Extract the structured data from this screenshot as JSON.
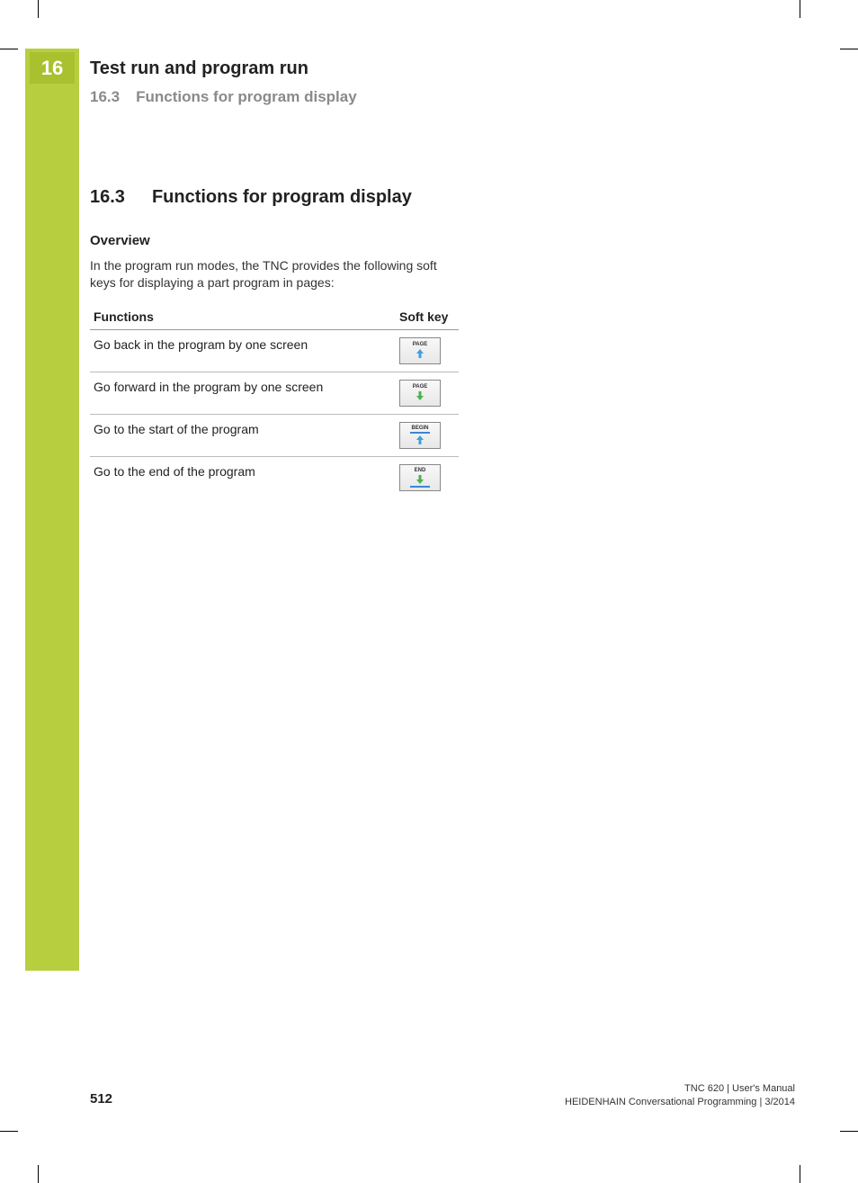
{
  "colors": {
    "sidebar": "#b7cf3f",
    "tab": "#aac12f",
    "tab_text": "#ffffff",
    "heading_grey": "#8a8a8a",
    "text": "#222222",
    "rule": "#999999",
    "softkey_border": "#888888",
    "softkey_bg_top": "#f8f8f8",
    "softkey_bg_bottom": "#e8e8e8",
    "arrow_blue": "#3ea0e0",
    "arrow_green": "#4fb04f",
    "bar_blue": "#3a88d6"
  },
  "chapter": {
    "number": "16",
    "title": "Test run and program run"
  },
  "running_section": {
    "number": "16.3",
    "title": "Functions for program display"
  },
  "section": {
    "number": "16.3",
    "title": "Functions for program display"
  },
  "overview": {
    "heading": "Overview",
    "intro": "In the program run modes, the TNC provides the following soft keys for displaying a part program in pages:"
  },
  "table": {
    "headers": {
      "functions": "Functions",
      "softkey": "Soft key"
    },
    "rows": [
      {
        "desc": "Go back in the program by one screen",
        "key": {
          "label": "PAGE",
          "icon": "arrow-up",
          "color": "#3ea0e0",
          "bar": false
        }
      },
      {
        "desc": "Go forward in the program by one screen",
        "key": {
          "label": "PAGE",
          "icon": "arrow-down",
          "color": "#4fb04f",
          "bar": false
        }
      },
      {
        "desc": "Go to the start of the program",
        "key": {
          "label": "BEGIN",
          "icon": "arrow-up-bar",
          "color": "#3ea0e0",
          "bar": true
        }
      },
      {
        "desc": "Go to the end of the program",
        "key": {
          "label": "END",
          "icon": "arrow-down-bar",
          "color": "#4fb04f",
          "bar": true
        }
      }
    ]
  },
  "page_number": "512",
  "footer": {
    "line1": "TNC 620 | User's Manual",
    "line2": "HEIDENHAIN Conversational Programming | 3/2014"
  }
}
